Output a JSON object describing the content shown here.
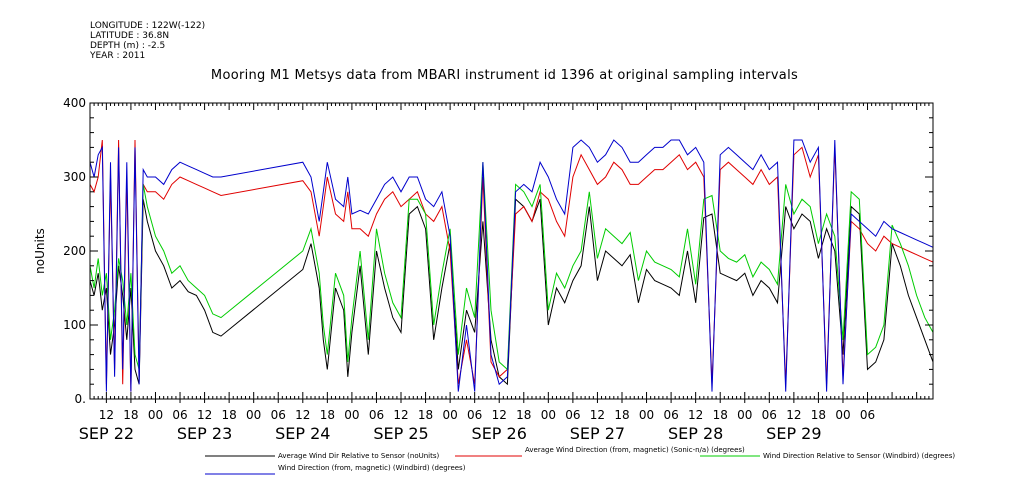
{
  "header": {
    "longitude": "LONGITUDE : 122W(-122)",
    "latitude": "LATITUDE : 36.8N",
    "depth": "DEPTH (m) : -2.5",
    "year": "YEAR : 2011"
  },
  "chart_data": {
    "type": "line",
    "title": "Mooring M1 Metsys data from MBARI instrument id 1396 at original sampling intervals",
    "ylabel": "noUnits",
    "ylim": [
      0,
      400
    ],
    "yticks": [
      0,
      100,
      200,
      300,
      400
    ],
    "ytick_labels": [
      "0.",
      "100",
      "200",
      "300",
      "400"
    ],
    "x_range_hours": [
      0,
      206
    ],
    "x_start_label": "SEP 22 08:00",
    "hour_tick_labels": [
      "12",
      "18",
      "00",
      "06",
      "12",
      "18",
      "00",
      "06",
      "12",
      "18",
      "00",
      "06",
      "12",
      "18",
      "00",
      "06",
      "12",
      "18",
      "00",
      "06",
      "12",
      "18",
      "00",
      "06",
      "12",
      "18",
      "00",
      "06",
      "12",
      "18",
      "00",
      "06"
    ],
    "day_labels": [
      "SEP 22",
      "SEP 23",
      "SEP 24",
      "SEP 25",
      "SEP 26",
      "SEP 27",
      "SEP 28",
      "SEP 29"
    ],
    "series": [
      {
        "name": "Average Wind Dir Relative to Sensor (noUnits)",
        "color": "#000000",
        "x": [
          0,
          1,
          2,
          3,
          4,
          5,
          6,
          7,
          8,
          9,
          10,
          11,
          12,
          13,
          14,
          16,
          18,
          20,
          22,
          24,
          26,
          28,
          30,
          32,
          52,
          54,
          56,
          57,
          58,
          60,
          62,
          63,
          64,
          66,
          68,
          70,
          72,
          74,
          76,
          78,
          80,
          82,
          84,
          86,
          88,
          90,
          92,
          94,
          96,
          98,
          100,
          102,
          104,
          106,
          108,
          110,
          112,
          114,
          116,
          118,
          120,
          122,
          124,
          126,
          128,
          130,
          132,
          134,
          136,
          138,
          140,
          142,
          144,
          146,
          148,
          150,
          152,
          154,
          156,
          158,
          160,
          162,
          164,
          166,
          168,
          170,
          172,
          174,
          176,
          178,
          180,
          182,
          184,
          186,
          188,
          190,
          192,
          194,
          196,
          198,
          200,
          202,
          204,
          206
        ],
        "y": [
          160,
          140,
          170,
          120,
          150,
          60,
          100,
          180,
          140,
          80,
          150,
          40,
          20,
          270,
          240,
          200,
          180,
          150,
          160,
          145,
          140,
          120,
          90,
          85,
          175,
          210,
          150,
          80,
          40,
          150,
          120,
          30,
          90,
          180,
          60,
          200,
          150,
          110,
          90,
          250,
          260,
          230,
          80,
          150,
          210,
          40,
          120,
          90,
          240,
          80,
          30,
          20,
          270,
          260,
          240,
          270,
          100,
          150,
          130,
          160,
          180,
          260,
          160,
          200,
          190,
          180,
          195,
          130,
          175,
          160,
          155,
          150,
          140,
          200,
          130,
          245,
          250,
          170,
          165,
          160,
          170,
          140,
          160,
          150,
          130,
          260,
          230,
          250,
          240,
          190,
          230,
          200,
          60,
          260,
          250,
          40,
          50,
          80,
          210,
          180,
          140,
          110,
          80,
          50
        ]
      },
      {
        "name": "Average Wind Direction (from, magnetic) (Sonic-n/a) (degrees)",
        "color": "#e00000",
        "x": [
          0,
          1,
          2,
          3,
          4,
          5,
          6,
          7,
          8,
          9,
          10,
          11,
          12,
          13,
          14,
          16,
          18,
          20,
          22,
          24,
          26,
          28,
          30,
          32,
          52,
          54,
          56,
          57,
          58,
          60,
          62,
          63,
          64,
          66,
          68,
          70,
          72,
          74,
          76,
          78,
          80,
          82,
          84,
          86,
          88,
          90,
          92,
          94,
          96,
          98,
          100,
          102,
          104,
          106,
          108,
          110,
          112,
          114,
          116,
          118,
          120,
          122,
          124,
          126,
          128,
          130,
          132,
          134,
          136,
          138,
          140,
          142,
          144,
          146,
          148,
          150,
          152,
          154,
          156,
          158,
          160,
          162,
          164,
          166,
          168,
          170,
          172,
          174,
          176,
          178,
          180,
          182,
          184,
          186,
          188,
          190,
          192,
          194,
          196,
          198,
          200,
          202,
          204,
          206
        ],
        "y": [
          290,
          280,
          300,
          350,
          20,
          300,
          40,
          350,
          20,
          300,
          10,
          350,
          30,
          290,
          280,
          280,
          270,
          290,
          300,
          295,
          290,
          285,
          280,
          275,
          295,
          280,
          220,
          260,
          300,
          250,
          240,
          280,
          230,
          230,
          220,
          250,
          270,
          280,
          260,
          270,
          280,
          250,
          240,
          260,
          200,
          20,
          80,
          20,
          300,
          50,
          30,
          40,
          250,
          260,
          240,
          280,
          270,
          240,
          220,
          300,
          330,
          310,
          290,
          300,
          320,
          310,
          290,
          290,
          300,
          310,
          310,
          320,
          330,
          310,
          320,
          300,
          20,
          310,
          320,
          310,
          300,
          290,
          310,
          290,
          300,
          20,
          330,
          340,
          300,
          330,
          20,
          340,
          30,
          240,
          230,
          210,
          200,
          220,
          210,
          205,
          200,
          195,
          190,
          185
        ]
      },
      {
        "name": "Wind Direction Relative to Sensor (Windbird) (degrees)",
        "color": "#00cc00",
        "x": [
          0,
          1,
          2,
          3,
          4,
          5,
          6,
          7,
          8,
          9,
          10,
          11,
          12,
          13,
          14,
          16,
          18,
          20,
          22,
          24,
          26,
          28,
          30,
          32,
          52,
          54,
          56,
          57,
          58,
          60,
          62,
          63,
          64,
          66,
          68,
          70,
          72,
          74,
          76,
          78,
          80,
          82,
          84,
          86,
          88,
          90,
          92,
          94,
          96,
          98,
          100,
          102,
          104,
          106,
          108,
          110,
          112,
          114,
          116,
          118,
          120,
          122,
          124,
          126,
          128,
          130,
          132,
          134,
          136,
          138,
          140,
          142,
          144,
          146,
          148,
          150,
          152,
          154,
          156,
          158,
          160,
          162,
          164,
          166,
          168,
          170,
          172,
          174,
          176,
          178,
          180,
          182,
          184,
          186,
          188,
          190,
          192,
          194,
          196,
          198,
          200,
          202,
          204,
          206
        ],
        "y": [
          180,
          150,
          190,
          140,
          170,
          80,
          120,
          190,
          160,
          100,
          170,
          60,
          40,
          290,
          260,
          220,
          200,
          170,
          180,
          160,
          150,
          140,
          115,
          110,
          200,
          230,
          170,
          100,
          60,
          170,
          140,
          50,
          110,
          200,
          80,
          230,
          170,
          130,
          110,
          270,
          270,
          250,
          100,
          170,
          230,
          60,
          150,
          110,
          320,
          120,
          50,
          40,
          290,
          280,
          260,
          290,
          120,
          170,
          150,
          180,
          200,
          280,
          190,
          230,
          220,
          210,
          225,
          160,
          200,
          185,
          180,
          175,
          165,
          230,
          155,
          270,
          275,
          200,
          190,
          185,
          195,
          165,
          185,
          175,
          155,
          290,
          250,
          270,
          260,
          210,
          250,
          220,
          80,
          280,
          270,
          60,
          70,
          100,
          235,
          210,
          180,
          140,
          110,
          90
        ]
      },
      {
        "name": "Wind Direction (from, magnetic) (Windbird) (degrees)",
        "color": "#0000cc",
        "x": [
          0,
          1,
          2,
          3,
          4,
          5,
          6,
          7,
          8,
          9,
          10,
          11,
          12,
          13,
          14,
          16,
          18,
          20,
          22,
          24,
          26,
          28,
          30,
          32,
          52,
          54,
          56,
          57,
          58,
          60,
          62,
          63,
          64,
          66,
          68,
          70,
          72,
          74,
          76,
          78,
          80,
          82,
          84,
          86,
          88,
          90,
          92,
          94,
          96,
          98,
          100,
          102,
          104,
          106,
          108,
          110,
          112,
          114,
          116,
          118,
          120,
          122,
          124,
          126,
          128,
          130,
          132,
          134,
          136,
          138,
          140,
          142,
          144,
          146,
          148,
          150,
          152,
          154,
          156,
          158,
          160,
          162,
          164,
          166,
          168,
          170,
          172,
          174,
          176,
          178,
          180,
          182,
          184,
          186,
          188,
          190,
          192,
          194,
          196,
          198,
          200,
          202,
          204,
          206
        ],
        "y": [
          320,
          300,
          330,
          340,
          10,
          320,
          30,
          340,
          40,
          320,
          10,
          340,
          20,
          310,
          300,
          300,
          290,
          310,
          320,
          315,
          310,
          305,
          300,
          300,
          320,
          300,
          240,
          280,
          320,
          270,
          260,
          300,
          250,
          255,
          250,
          270,
          290,
          300,
          280,
          300,
          300,
          270,
          260,
          280,
          220,
          10,
          100,
          10,
          320,
          60,
          20,
          30,
          280,
          290,
          280,
          320,
          300,
          270,
          250,
          340,
          350,
          340,
          320,
          330,
          350,
          340,
          320,
          320,
          330,
          340,
          340,
          350,
          350,
          330,
          340,
          320,
          10,
          330,
          340,
          330,
          320,
          310,
          330,
          310,
          320,
          10,
          350,
          350,
          320,
          340,
          10,
          350,
          20,
          250,
          240,
          230,
          220,
          240,
          230,
          225,
          220,
          215,
          210,
          205
        ]
      }
    ]
  }
}
